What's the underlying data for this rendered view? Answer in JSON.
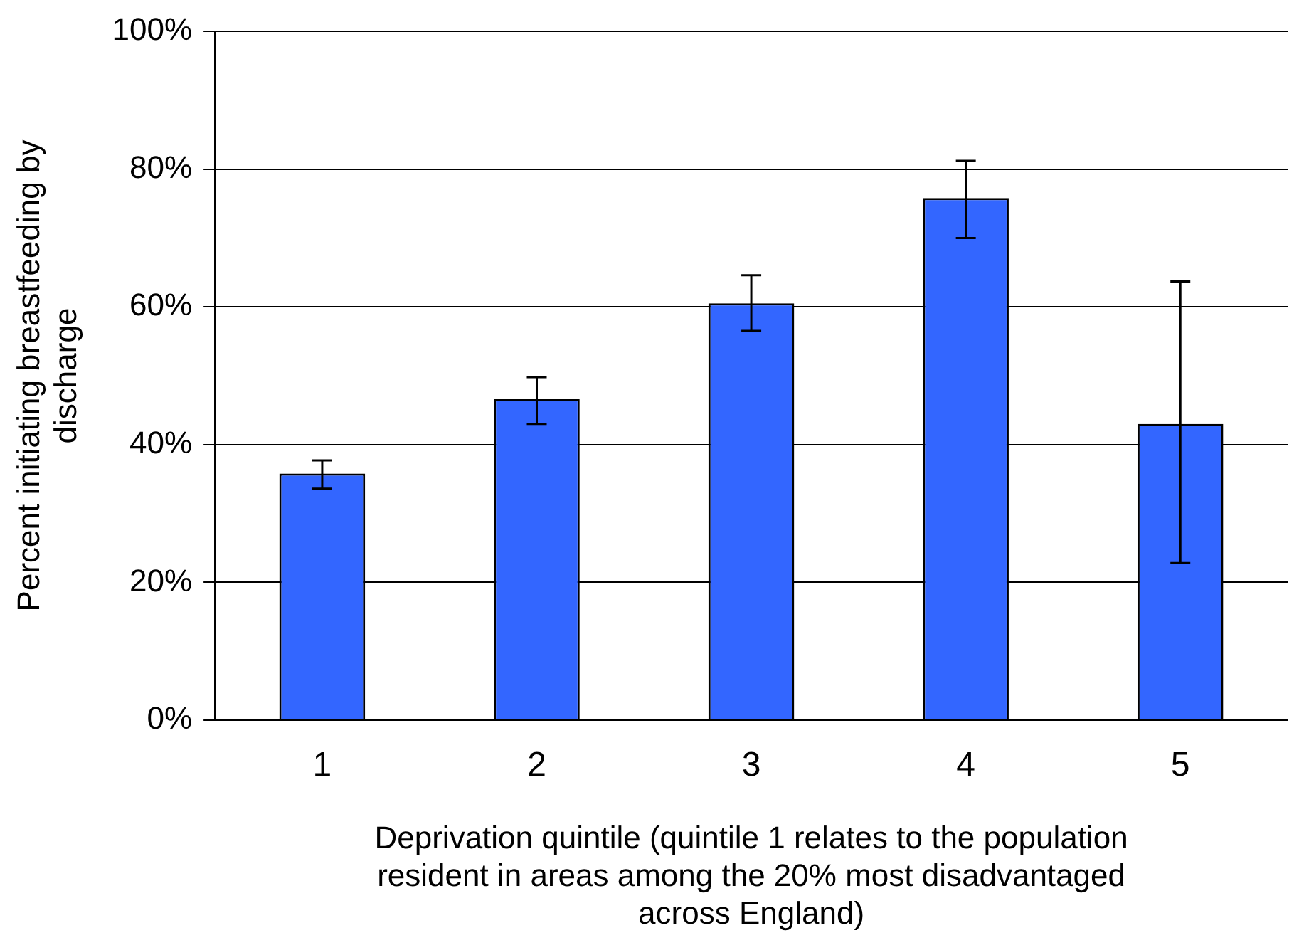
{
  "chart_data": {
    "type": "bar",
    "xlabel": "Deprivation quintile (quintile 1 relates to the population resident in areas among the 20% most disadvantaged across England)",
    "ylabel": "Percent initiating breastfeeding by discharge",
    "categories": [
      "1",
      "2",
      "3",
      "4",
      "5"
    ],
    "values": [
      35.8,
      46.6,
      60.5,
      75.8,
      43.0
    ],
    "errors": [
      [
        33.6,
        37.7
      ],
      [
        43.0,
        49.8
      ],
      [
        56.5,
        64.6
      ],
      [
        70.0,
        81.2
      ],
      [
        22.8,
        63.7
      ]
    ],
    "color": "#3366ff",
    "ylim": [
      0,
      100
    ],
    "yticks": [
      {
        "value": 0,
        "label": "0%"
      },
      {
        "value": 20,
        "label": "20%"
      },
      {
        "value": 40,
        "label": "40%"
      },
      {
        "value": 60,
        "label": "60%"
      },
      {
        "value": 80,
        "label": "80%"
      },
      {
        "value": 100,
        "label": "100%"
      }
    ],
    "grid": "y"
  }
}
